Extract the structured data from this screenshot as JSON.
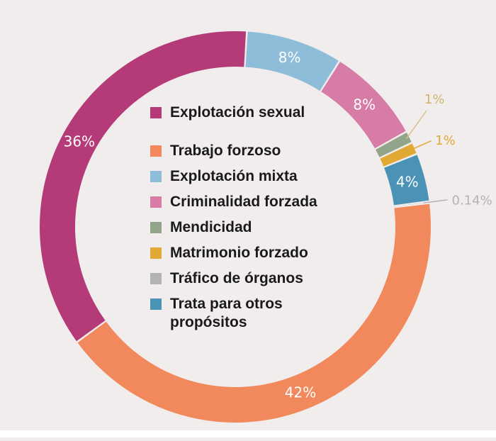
{
  "chart_data": {
    "type": "pie",
    "variant": "donut",
    "title": "",
    "categories": [
      "Trabajo forzoso",
      "Explotación sexual",
      "Explotación mixta",
      "Criminalidad forzada",
      "Mendicidad",
      "Matrimonio forzado",
      "Trata para otros propósitos",
      "Tráfico de órganos"
    ],
    "values": [
      42,
      36,
      8,
      8,
      1,
      1,
      4,
      0.14
    ],
    "value_labels": [
      "42%",
      "36%",
      "8%",
      "8%",
      "",
      "1%",
      "4%",
      "0.14%"
    ],
    "outside_value_labels": [
      "",
      "",
      "",
      "",
      "1%",
      "",
      "",
      ""
    ],
    "colors": [
      "#f2895c",
      "#b53b78",
      "#8dbdd9",
      "#d77ca7",
      "#92a48a",
      "#e0a934",
      "#4a93b7",
      "#b4b3b3"
    ],
    "legend_order": [
      1,
      0,
      2,
      3,
      4,
      5,
      7,
      6
    ],
    "legend": {
      "placement": "center",
      "items": [
        {
          "label": "Explotación sexual",
          "color": "#b53b78"
        },
        {
          "label": "Trabajo forzoso",
          "color": "#f2895c"
        },
        {
          "label": "Explotación mixta",
          "color": "#8dbdd9"
        },
        {
          "label": "Criminalidad forzada",
          "color": "#d77ca7"
        },
        {
          "label": "Mendicidad",
          "color": "#92a48a"
        },
        {
          "label": "Matrimonio forzado",
          "color": "#e0a934"
        },
        {
          "label": "Tráfico de órganos",
          "color": "#b4b3b3"
        },
        {
          "label": "Trata para otros propósitos",
          "color": "#4a93b7"
        }
      ]
    }
  },
  "colors": {
    "background": "#f1edec",
    "label_inside": "#ffffff",
    "legend_text": "#1a1a1a"
  }
}
